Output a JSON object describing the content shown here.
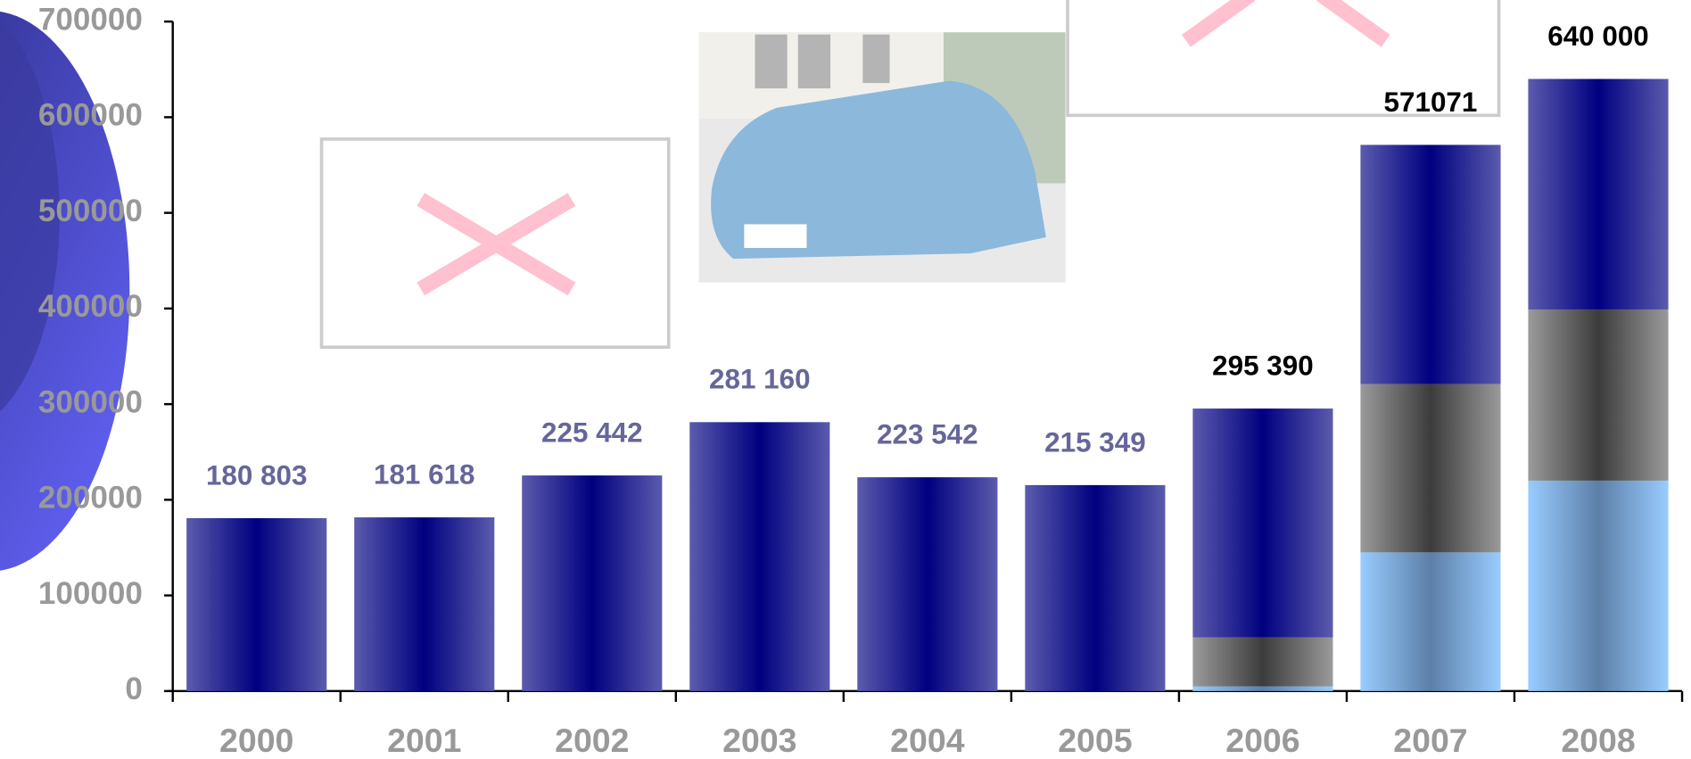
{
  "chart_data": {
    "type": "stacked-bar",
    "categories": [
      "2000",
      "2001",
      "2002",
      "2003",
      "2004",
      "2005",
      "2006",
      "2007",
      "2008"
    ],
    "series": [
      {
        "color": "#99ccff",
        "values": [
          null,
          null,
          null,
          null,
          null,
          null,
          5000,
          145000,
          220000
        ]
      },
      {
        "color": "#777777",
        "values": [
          null,
          null,
          null,
          null,
          null,
          null,
          51000,
          176000,
          179000
        ]
      },
      {
        "color": "#3a3a9a",
        "values": [
          180803,
          181618,
          225442,
          281160,
          223542,
          215349,
          239390,
          250071,
          241000
        ]
      }
    ],
    "values": [
      180803,
      181618,
      225442,
      281160,
      223542,
      215349,
      295390,
      571071,
      640000
    ],
    "value_labels": [
      "180 803",
      "181 618",
      "225 442",
      "281 160",
      "223 542",
      "215 349",
      "295 390",
      "571071",
      "640 000"
    ],
    "ylim": [
      0,
      700000
    ],
    "yticks": [
      0,
      100000,
      200000,
      300000,
      400000,
      500000,
      600000,
      700000
    ]
  }
}
